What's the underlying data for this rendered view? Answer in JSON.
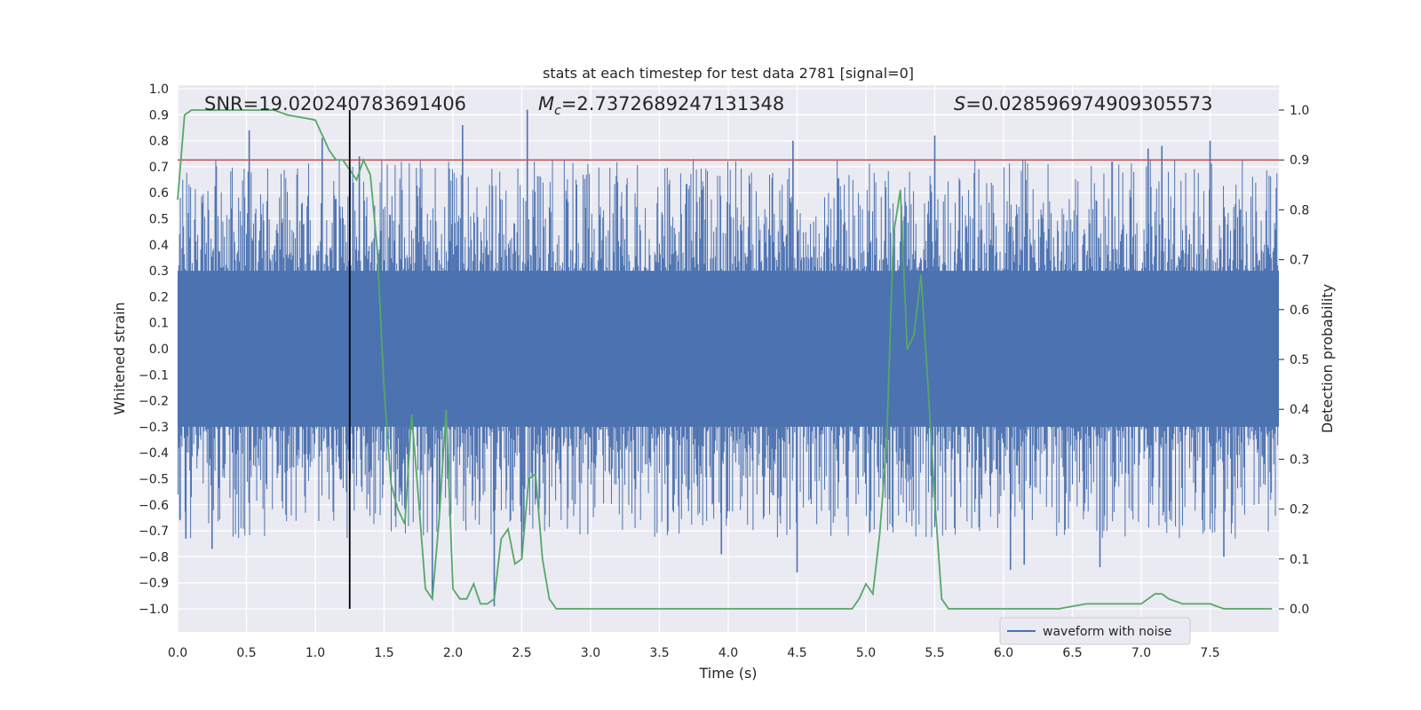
{
  "chart_data": {
    "type": "line",
    "title": "stats at each timestep for test data 2781 [signal=0]",
    "xlabel": "Time (s)",
    "ylabel": "Whitened strain",
    "y2label": "Detection probability",
    "xlim": [
      0.0,
      8.0
    ],
    "ylim": [
      -1.0,
      1.0
    ],
    "y2lim": [
      0.0,
      1.0
    ],
    "xticks": [
      "0.0",
      "0.5",
      "1.0",
      "1.5",
      "2.0",
      "2.5",
      "3.0",
      "3.5",
      "4.0",
      "4.5",
      "5.0",
      "5.5",
      "6.0",
      "6.5",
      "7.0",
      "7.5"
    ],
    "xtick_values": [
      0.0,
      0.5,
      1.0,
      1.5,
      2.0,
      2.5,
      3.0,
      3.5,
      4.0,
      4.5,
      5.0,
      5.5,
      6.0,
      6.5,
      7.0,
      7.5
    ],
    "yticks": [
      "1.0",
      "0.9",
      "0.8",
      "0.7",
      "0.6",
      "0.5",
      "0.4",
      "0.3",
      "0.2",
      "0.1",
      "0.0",
      "−0.1",
      "−0.2",
      "−0.3",
      "−0.4",
      "−0.5",
      "−0.6",
      "−0.7",
      "−0.8",
      "−0.9",
      "−1.0"
    ],
    "ytick_values": [
      1.0,
      0.9,
      0.8,
      0.7,
      0.6,
      0.5,
      0.4,
      0.3,
      0.2,
      0.1,
      0.0,
      -0.1,
      -0.2,
      -0.3,
      -0.4,
      -0.5,
      -0.6,
      -0.7,
      -0.8,
      -0.9,
      -1.0
    ],
    "y2ticks": [
      "1.0",
      "0.9",
      "0.8",
      "0.7",
      "0.6",
      "0.5",
      "0.4",
      "0.3",
      "0.2",
      "0.1",
      "0.0"
    ],
    "y2tick_values": [
      1.0,
      0.9,
      0.8,
      0.7,
      0.6,
      0.5,
      0.4,
      0.3,
      0.2,
      0.1,
      0.0
    ],
    "annotations": {
      "snr": "SNR=19.020240783691406",
      "mc_symbol": "M",
      "mc_sub": "c",
      "mc_value": "=2.7372689247131348",
      "s_symbol": "S",
      "s_value": "=0.028596974909305573"
    },
    "legend": {
      "label": "waveform with noise",
      "position": "lower-right"
    },
    "waveform": {
      "name": "waveform with noise",
      "color": "#4c72b0",
      "dense_band": [
        -0.3,
        0.3
      ],
      "typical_peak": 0.5,
      "max_peak": 0.92,
      "min_trough": -0.99,
      "spikes": [
        {
          "t": 0.52,
          "v": 0.84
        },
        {
          "t": 1.05,
          "v": 0.81
        },
        {
          "t": 1.25,
          "v": 0.85
        },
        {
          "t": 1.32,
          "v": 0.74
        },
        {
          "t": 2.07,
          "v": 0.86
        },
        {
          "t": 2.54,
          "v": 0.92
        },
        {
          "t": 4.47,
          "v": 0.8
        },
        {
          "t": 5.5,
          "v": 0.82
        },
        {
          "t": 7.05,
          "v": 0.77
        },
        {
          "t": 7.15,
          "v": 0.78
        },
        {
          "t": 7.5,
          "v": 0.8
        },
        {
          "t": 0.06,
          "v": -0.73
        },
        {
          "t": 0.25,
          "v": -0.77
        },
        {
          "t": 1.85,
          "v": -0.96
        },
        {
          "t": 2.3,
          "v": -0.99
        },
        {
          "t": 2.5,
          "v": -0.8
        },
        {
          "t": 3.95,
          "v": -0.79
        },
        {
          "t": 4.5,
          "v": -0.86
        },
        {
          "t": 6.05,
          "v": -0.85
        },
        {
          "t": 6.15,
          "v": -0.83
        },
        {
          "t": 6.7,
          "v": -0.84
        },
        {
          "t": 7.6,
          "v": -0.8
        }
      ]
    },
    "probability": {
      "name": "Detection probability",
      "color": "#55a868",
      "t": [
        0.0,
        0.05,
        0.1,
        0.2,
        0.3,
        0.5,
        0.7,
        0.8,
        0.9,
        1.0,
        1.05,
        1.1,
        1.15,
        1.2,
        1.25,
        1.3,
        1.35,
        1.4,
        1.45,
        1.5,
        1.55,
        1.6,
        1.65,
        1.7,
        1.75,
        1.8,
        1.85,
        1.9,
        1.95,
        2.0,
        2.05,
        2.1,
        2.15,
        2.2,
        2.25,
        2.3,
        2.35,
        2.4,
        2.45,
        2.5,
        2.55,
        2.6,
        2.65,
        2.7,
        2.75,
        2.8,
        2.85,
        2.9,
        2.95,
        3.0,
        3.05,
        3.1,
        3.2,
        3.4,
        3.6,
        3.8,
        4.0,
        4.2,
        4.4,
        4.6,
        4.8,
        4.9,
        4.95,
        5.0,
        5.05,
        5.1,
        5.15,
        5.2,
        5.25,
        5.3,
        5.35,
        5.4,
        5.45,
        5.5,
        5.55,
        5.6,
        5.65,
        5.7,
        5.8,
        6.0,
        6.2,
        6.4,
        6.6,
        6.7,
        6.8,
        6.9,
        7.0,
        7.1,
        7.15,
        7.2,
        7.3,
        7.4,
        7.5,
        7.6,
        7.7,
        7.8,
        7.95
      ],
      "p": [
        0.82,
        0.99,
        1.0,
        1.0,
        1.0,
        1.0,
        1.0,
        0.99,
        0.985,
        0.98,
        0.95,
        0.92,
        0.9,
        0.9,
        0.88,
        0.86,
        0.9,
        0.87,
        0.72,
        0.44,
        0.25,
        0.2,
        0.17,
        0.39,
        0.22,
        0.04,
        0.02,
        0.18,
        0.4,
        0.04,
        0.02,
        0.02,
        0.05,
        0.01,
        0.01,
        0.02,
        0.14,
        0.16,
        0.09,
        0.1,
        0.26,
        0.27,
        0.1,
        0.02,
        0.0,
        0.0,
        0.0,
        0.0,
        0.0,
        0.0,
        0.0,
        0.0,
        0.0,
        0.0,
        0.0,
        0.0,
        0.0,
        0.0,
        0.0,
        0.0,
        0.0,
        0.0,
        0.02,
        0.05,
        0.03,
        0.15,
        0.33,
        0.75,
        0.84,
        0.52,
        0.55,
        0.67,
        0.45,
        0.22,
        0.02,
        0.0,
        0.0,
        0.0,
        0.0,
        0.0,
        0.0,
        0.0,
        0.01,
        0.01,
        0.01,
        0.01,
        0.01,
        0.03,
        0.03,
        0.02,
        0.01,
        0.01,
        0.01,
        0.0,
        0.0,
        0.0,
        0.0
      ],
      "note": "values read from right axis (0-1)"
    },
    "threshold": {
      "name": "threshold",
      "value": 0.9,
      "axis": "right",
      "color": "#c44e52"
    },
    "vline": {
      "name": "marker",
      "t": 1.25,
      "color": "#000000"
    }
  }
}
